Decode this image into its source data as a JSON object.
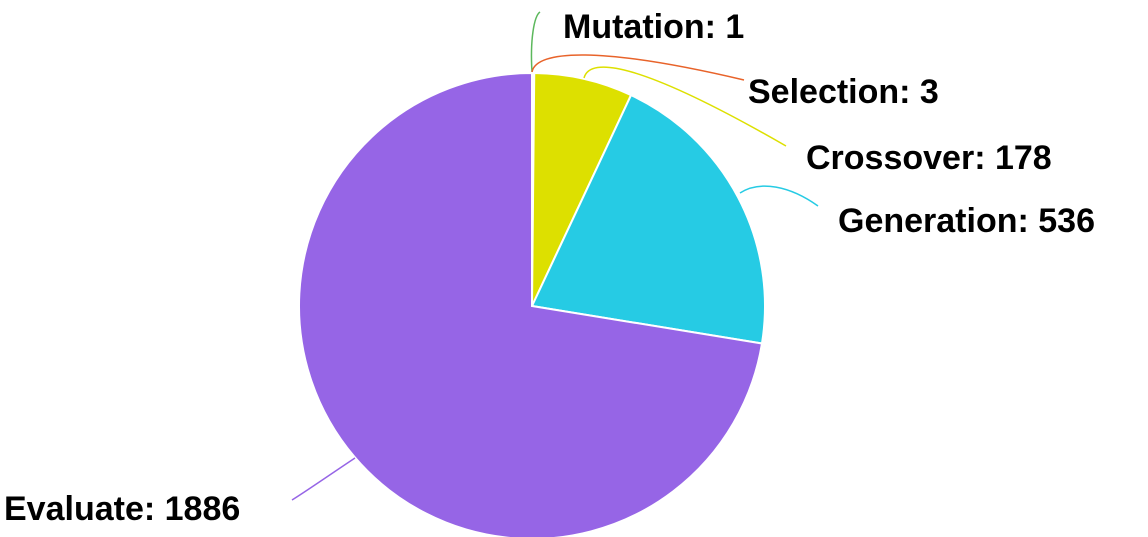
{
  "chart_data": {
    "type": "pie",
    "title": "",
    "start_angle_deg": 0,
    "direction": "clockwise",
    "legend": "none",
    "slices": [
      {
        "name": "Mutation",
        "value": 1,
        "label": "Mutation: 1",
        "color": "#5cb85c"
      },
      {
        "name": "Selection",
        "value": 3,
        "label": "Selection: 3",
        "color": "#e8632a"
      },
      {
        "name": "Crossover",
        "value": 178,
        "label": "Crossover: 178",
        "color": "#dde000"
      },
      {
        "name": "Generation",
        "value": 536,
        "label": "Generation: 536",
        "color": "#26cbe4"
      },
      {
        "name": "Evaluate",
        "value": 1886,
        "label": "Evaluate: 1886",
        "color": "#9665e6"
      }
    ]
  }
}
